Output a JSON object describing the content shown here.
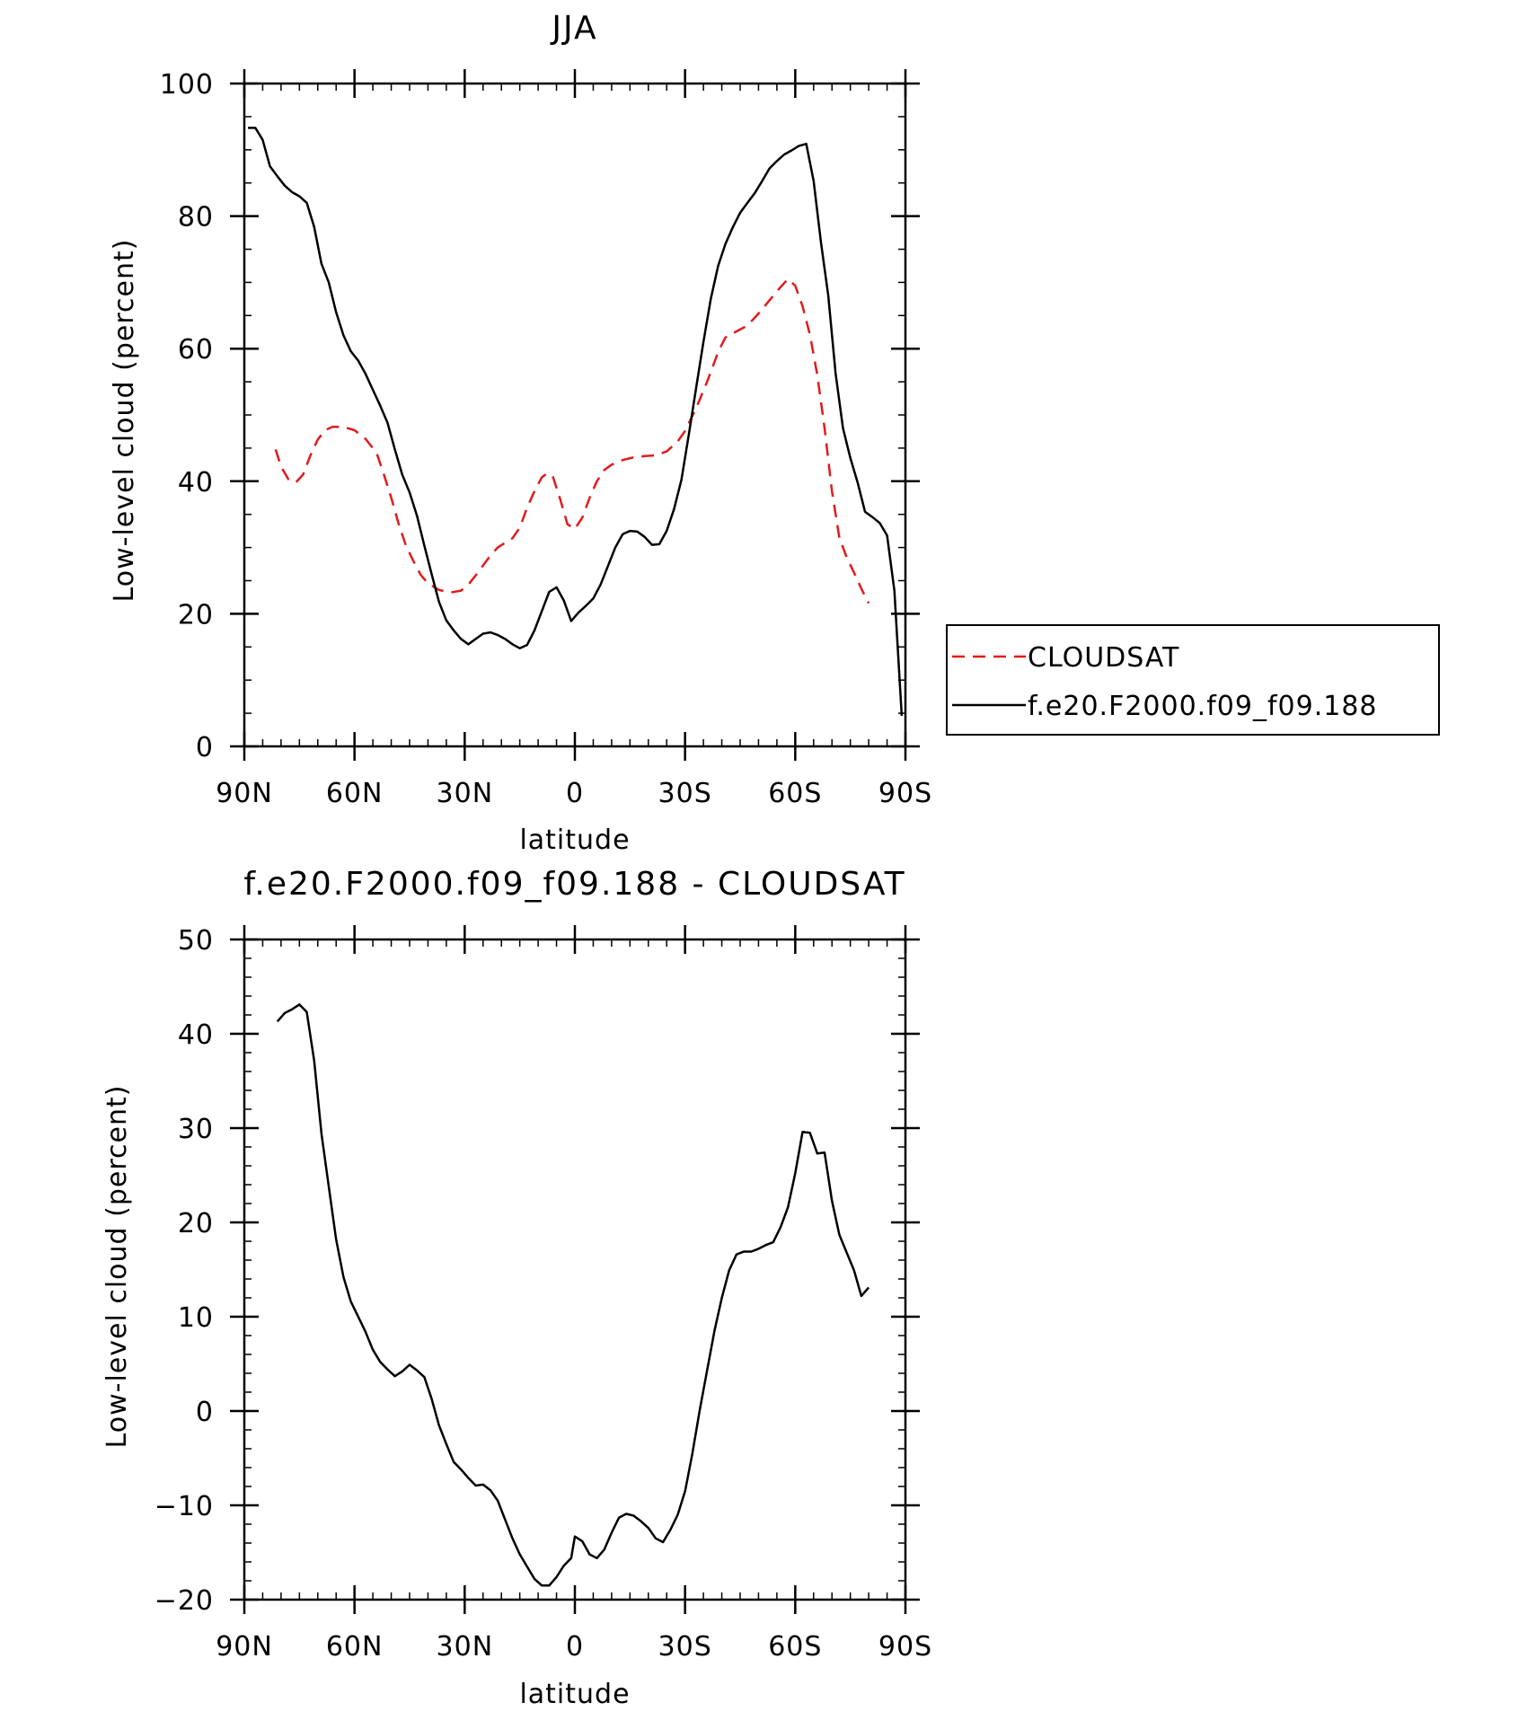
{
  "chart_data": [
    {
      "type": "line",
      "title": "JJA",
      "xlabel": "latitude",
      "ylabel": "Low-level cloud (percent)",
      "xlim": [
        90,
        -90
      ],
      "ylim": [
        0,
        100
      ],
      "xticks": [
        {
          "value": 90,
          "label": "90N"
        },
        {
          "value": 60,
          "label": "60N"
        },
        {
          "value": 30,
          "label": "30N"
        },
        {
          "value": 0,
          "label": "0"
        },
        {
          "value": -30,
          "label": "30S"
        },
        {
          "value": -60,
          "label": "60S"
        },
        {
          "value": -90,
          "label": "90S"
        }
      ],
      "yticks": [
        {
          "value": 0,
          "label": "0"
        },
        {
          "value": 20,
          "label": "20"
        },
        {
          "value": 40,
          "label": "40"
        },
        {
          "value": 60,
          "label": "60"
        },
        {
          "value": 80,
          "label": "80"
        },
        {
          "value": 100,
          "label": "100"
        }
      ],
      "grid": false,
      "legend": "right",
      "series": [
        {
          "name": "CLOUDSAT",
          "color": "#e31a1c",
          "dash": "dashed",
          "points": [
            [
              81.5,
              44.8
            ],
            [
              80,
              42.2
            ],
            [
              78,
              40.3
            ],
            [
              76,
              39.8
            ],
            [
              74,
              41
            ],
            [
              72,
              43.9
            ],
            [
              70,
              46.3
            ],
            [
              68,
              47.7
            ],
            [
              66,
              48.2
            ],
            [
              63,
              48.2
            ],
            [
              60,
              47.7
            ],
            [
              57,
              46.4
            ],
            [
              54,
              44.3
            ],
            [
              52,
              41
            ],
            [
              50,
              37.5
            ],
            [
              48,
              33.6
            ],
            [
              46,
              30.3
            ],
            [
              44,
              28
            ],
            [
              42,
              25.9
            ],
            [
              40,
              24.6
            ],
            [
              37,
              23.6
            ],
            [
              34,
              23.2
            ],
            [
              31,
              23.5
            ],
            [
              29,
              24.4
            ],
            [
              27,
              25.8
            ],
            [
              25,
              27.3
            ],
            [
              23,
              28.8
            ],
            [
              21,
              30
            ],
            [
              19,
              30.7
            ],
            [
              17,
              31.4
            ],
            [
              15,
              33
            ],
            [
              13,
              36
            ],
            [
              11,
              38.5
            ],
            [
              9,
              40.6
            ],
            [
              7.5,
              41.2
            ],
            [
              6,
              40.7
            ],
            [
              4,
              37.3
            ],
            [
              2,
              33.5
            ],
            [
              0,
              32.8
            ],
            [
              -2,
              34.5
            ],
            [
              -4,
              37.5
            ],
            [
              -6,
              40
            ],
            [
              -8,
              41.7
            ],
            [
              -10,
              42.5
            ],
            [
              -13,
              43.2
            ],
            [
              -16,
              43.6
            ],
            [
              -19,
              43.8
            ],
            [
              -22,
              43.9
            ],
            [
              -25,
              44.5
            ],
            [
              -28,
              46
            ],
            [
              -30,
              47.6
            ],
            [
              -33,
              51
            ],
            [
              -36,
              55
            ],
            [
              -39,
              59.5
            ],
            [
              -41,
              61.7
            ],
            [
              -44,
              62.6
            ],
            [
              -47,
              63.5
            ],
            [
              -50,
              65.3
            ],
            [
              -53,
              67.3
            ],
            [
              -56,
              69.3
            ],
            [
              -58,
              70.5
            ],
            [
              -60,
              69.5
            ],
            [
              -62,
              66.4
            ],
            [
              -64,
              62.1
            ],
            [
              -66,
              56
            ],
            [
              -68,
              48
            ],
            [
              -70,
              38.5
            ],
            [
              -72,
              31.5
            ],
            [
              -74,
              28.5
            ],
            [
              -76,
              26.2
            ],
            [
              -78,
              23.8
            ],
            [
              -80,
              21.6
            ]
          ]
        },
        {
          "name": "f.e20.F2000.f09_f09.188",
          "color": "#000000",
          "dash": "solid",
          "points": [
            [
              89,
              93.3
            ],
            [
              87,
              93.3
            ],
            [
              85,
              91.5
            ],
            [
              83,
              87.5
            ],
            [
              81,
              86
            ],
            [
              79,
              84.6
            ],
            [
              77,
              83.6
            ],
            [
              75,
              83
            ],
            [
              73,
              82
            ],
            [
              71,
              78.4
            ],
            [
              69,
              72.8
            ],
            [
              67,
              70
            ],
            [
              65,
              65.5
            ],
            [
              63,
              62
            ],
            [
              61,
              59.6
            ],
            [
              59,
              58.2
            ],
            [
              57,
              56.2
            ],
            [
              55,
              53.8
            ],
            [
              53,
              51.4
            ],
            [
              51,
              48.8
            ],
            [
              49,
              44.8
            ],
            [
              47,
              41
            ],
            [
              45,
              38.3
            ],
            [
              43,
              34.8
            ],
            [
              41,
              30.3
            ],
            [
              39,
              26
            ],
            [
              37,
              21.8
            ],
            [
              35,
              19
            ],
            [
              33,
              17.5
            ],
            [
              31,
              16.2
            ],
            [
              29,
              15.4
            ],
            [
              27,
              16.2
            ],
            [
              25,
              17
            ],
            [
              23,
              17.2
            ],
            [
              21,
              16.8
            ],
            [
              19,
              16.2
            ],
            [
              17,
              15.4
            ],
            [
              15,
              14.8
            ],
            [
              13,
              15.3
            ],
            [
              11,
              17.5
            ],
            [
              9,
              20.4
            ],
            [
              7,
              23.3
            ],
            [
              5,
              24
            ],
            [
              3,
              22
            ],
            [
              1,
              18.9
            ],
            [
              -1,
              20.2
            ],
            [
              -3,
              21.2
            ],
            [
              -5,
              22.3
            ],
            [
              -7,
              24.4
            ],
            [
              -9,
              27.2
            ],
            [
              -11,
              30
            ],
            [
              -13,
              32
            ],
            [
              -15,
              32.5
            ],
            [
              -17,
              32.4
            ],
            [
              -19,
              31.6
            ],
            [
              -21,
              30.4
            ],
            [
              -23,
              30.5
            ],
            [
              -25,
              32.5
            ],
            [
              -27,
              35.8
            ],
            [
              -29,
              40.2
            ],
            [
              -31,
              47
            ],
            [
              -33,
              54
            ],
            [
              -35,
              61
            ],
            [
              -37,
              67.5
            ],
            [
              -39,
              72.5
            ],
            [
              -41,
              75.8
            ],
            [
              -43,
              78.3
            ],
            [
              -45,
              80.5
            ],
            [
              -47,
              82
            ],
            [
              -49,
              83.5
            ],
            [
              -51,
              85.3
            ],
            [
              -53,
              87.2
            ],
            [
              -55,
              88.3
            ],
            [
              -57,
              89.3
            ],
            [
              -59,
              89.9
            ],
            [
              -61,
              90.6
            ],
            [
              -63,
              90.9
            ],
            [
              -65,
              85.3
            ],
            [
              -67,
              76
            ],
            [
              -69,
              68
            ],
            [
              -71,
              56.2
            ],
            [
              -73,
              48
            ],
            [
              -75,
              43.5
            ],
            [
              -77,
              39.8
            ],
            [
              -79,
              35.4
            ],
            [
              -81,
              34.6
            ],
            [
              -83,
              33.7
            ],
            [
              -85,
              31.8
            ],
            [
              -87,
              23.5
            ],
            [
              -89,
              4.6
            ]
          ]
        }
      ]
    },
    {
      "type": "line",
      "title": "f.e20.F2000.f09_f09.188 - CLOUDSAT",
      "xlabel": "latitude",
      "ylabel": "Low-level cloud (percent)",
      "xlim": [
        90,
        -90
      ],
      "ylim": [
        -20,
        50
      ],
      "xticks": [
        {
          "value": 90,
          "label": "90N"
        },
        {
          "value": 60,
          "label": "60N"
        },
        {
          "value": 30,
          "label": "30N"
        },
        {
          "value": 0,
          "label": "0"
        },
        {
          "value": -30,
          "label": "30S"
        },
        {
          "value": -60,
          "label": "60S"
        },
        {
          "value": -90,
          "label": "90S"
        }
      ],
      "yticks": [
        {
          "value": -20,
          "label": "−20"
        },
        {
          "value": -10,
          "label": "−10"
        },
        {
          "value": 0,
          "label": "0"
        },
        {
          "value": 10,
          "label": "10"
        },
        {
          "value": 20,
          "label": "20"
        },
        {
          "value": 30,
          "label": "30"
        },
        {
          "value": 40,
          "label": "40"
        },
        {
          "value": 50,
          "label": "50"
        }
      ],
      "grid": false,
      "series": [
        {
          "name": "",
          "color": "#000000",
          "dash": "solid",
          "points": [
            [
              81,
              41.3
            ],
            [
              79,
              42.2
            ],
            [
              77,
              42.6
            ],
            [
              75,
              43.1
            ],
            [
              73,
              42.3
            ],
            [
              71,
              37.2
            ],
            [
              69,
              29.4
            ],
            [
              67,
              23.8
            ],
            [
              65,
              18.2
            ],
            [
              63,
              14.2
            ],
            [
              61,
              11.6
            ],
            [
              59,
              10
            ],
            [
              57,
              8.4
            ],
            [
              55,
              6.5
            ],
            [
              53,
              5.2
            ],
            [
              51,
              4.4
            ],
            [
              49,
              3.7
            ],
            [
              47,
              4.2
            ],
            [
              45,
              4.9
            ],
            [
              43,
              4.3
            ],
            [
              41,
              3.6
            ],
            [
              39,
              1.3
            ],
            [
              37,
              -1.5
            ],
            [
              35,
              -3.5
            ],
            [
              33,
              -5.4
            ],
            [
              31,
              -6.2
            ],
            [
              29,
              -7.1
            ],
            [
              27,
              -7.9
            ],
            [
              25,
              -7.8
            ],
            [
              23,
              -8.4
            ],
            [
              21,
              -9.5
            ],
            [
              19,
              -11.5
            ],
            [
              17,
              -13.5
            ],
            [
              15,
              -15.2
            ],
            [
              13,
              -16.5
            ],
            [
              11,
              -17.8
            ],
            [
              9,
              -18.5
            ],
            [
              7,
              -18.5
            ],
            [
              5,
              -17.6
            ],
            [
              3,
              -16.4
            ],
            [
              1,
              -15.6
            ],
            [
              0,
              -13.3
            ],
            [
              -2,
              -13.8
            ],
            [
              -4,
              -15.2
            ],
            [
              -6,
              -15.6
            ],
            [
              -8,
              -14.7
            ],
            [
              -10,
              -12.9
            ],
            [
              -12,
              -11.3
            ],
            [
              -14,
              -10.9
            ],
            [
              -16,
              -11.1
            ],
            [
              -18,
              -11.7
            ],
            [
              -20,
              -12.4
            ],
            [
              -22,
              -13.5
            ],
            [
              -24,
              -13.9
            ],
            [
              -26,
              -12.6
            ],
            [
              -28,
              -11
            ],
            [
              -30,
              -8.5
            ],
            [
              -32,
              -4.5
            ],
            [
              -34,
              0.1
            ],
            [
              -36,
              4.3
            ],
            [
              -38,
              8.5
            ],
            [
              -40,
              12
            ],
            [
              -42,
              14.9
            ],
            [
              -44,
              16.6
            ],
            [
              -46,
              16.9
            ],
            [
              -48,
              16.9
            ],
            [
              -50,
              17.2
            ],
            [
              -52,
              17.6
            ],
            [
              -54,
              17.9
            ],
            [
              -56,
              19.5
            ],
            [
              -58,
              21.6
            ],
            [
              -60,
              25.2
            ],
            [
              -62,
              29.6
            ],
            [
              -64,
              29.5
            ],
            [
              -66,
              27.3
            ],
            [
              -68,
              27.4
            ],
            [
              -70,
              22.3
            ],
            [
              -72,
              18.7
            ],
            [
              -74,
              16.8
            ],
            [
              -76,
              14.9
            ],
            [
              -78,
              12.2
            ],
            [
              -80,
              13.1
            ]
          ]
        }
      ]
    }
  ]
}
